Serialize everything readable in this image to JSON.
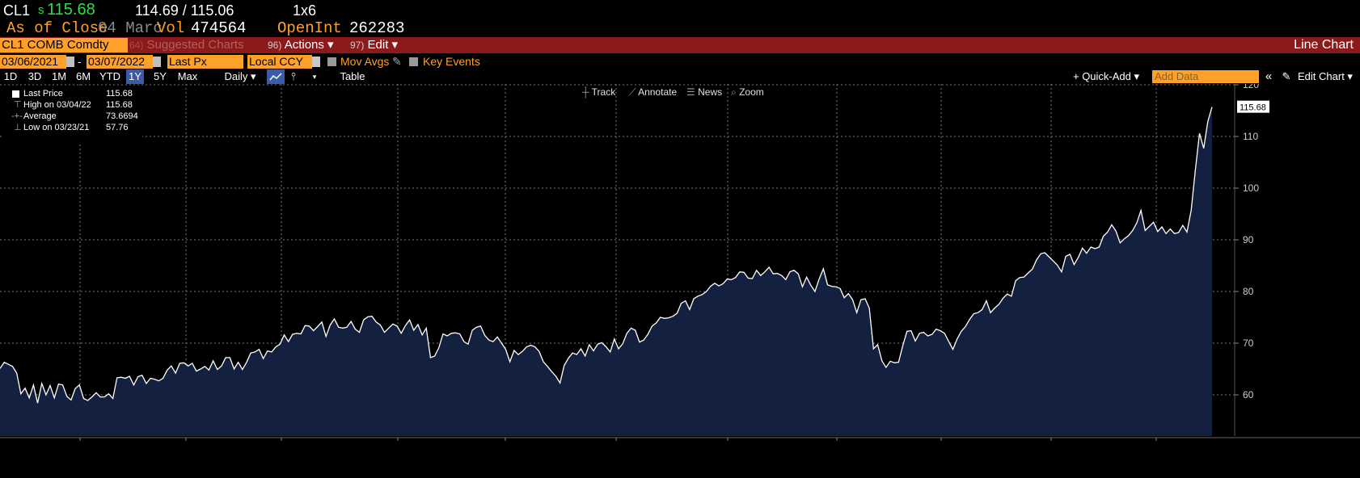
{
  "quote": {
    "ticker": "CL1",
    "price_prefix": "s",
    "price": "115.68",
    "bid_ask": "114.69 / 115.06",
    "size": "1x6",
    "as_of_label": "As of Close",
    "as_of_date": "04 Marc",
    "vol_label": "Vol",
    "vol": "474564",
    "openint_label": "OpenInt",
    "openint": "262283"
  },
  "header": {
    "security": "CL1 COMB Comdty",
    "suggested_charts": "Suggested Charts",
    "actions_num": "96)",
    "actions_label": "Actions ▾",
    "edit_num": "97)",
    "edit_label": "Edit ▾",
    "title": "Line Chart"
  },
  "params": {
    "start_date": "03/06/2021",
    "end_date": "03/07/2022",
    "field": "Last Px",
    "currency": "Local CCY",
    "mov_avgs": "Mov Avgs",
    "key_events": "Key Events"
  },
  "ranges": [
    "1D",
    "3D",
    "1M",
    "6M",
    "YTD",
    "1Y",
    "5Y",
    "Max"
  ],
  "active_range": "1Y",
  "toolbar": {
    "period": "Daily ▾",
    "table": "Table",
    "quick_add": "+ Quick-Add ▾",
    "add_data_placeholder": "Add Data",
    "collapse": "«",
    "edit_chart": "Edit Chart ▾",
    "track": "Track",
    "annotate": "Annotate",
    "news": "News",
    "zoom": "Zoom"
  },
  "legend": [
    {
      "label": "Last Price",
      "value": "115.68"
    },
    {
      "label": "High on 03/04/22",
      "value": "115.68"
    },
    {
      "label": "Average",
      "value": "73.6694"
    },
    {
      "label": "Low on 03/23/21",
      "value": "57.76"
    }
  ],
  "colors": {
    "orange": "#ffa028",
    "green_price": "#2ddc4a",
    "red_bar": "#8c1a1a",
    "area_fill": "#13203f",
    "line": "#ffffff"
  },
  "chart_data": {
    "type": "area",
    "ylim": [
      53,
      121
    ],
    "yticks": [
      60,
      70,
      80,
      90,
      100,
      110,
      120
    ],
    "grid": true,
    "last_value_label": "115.68",
    "x_range": [
      "2021-03-06",
      "2022-03-07"
    ],
    "series": [
      {
        "values": [
          65.1,
          66.3,
          65.9,
          65.5,
          64.2,
          60.2,
          61.3,
          59.4,
          61.9,
          58.4,
          62.2,
          60.0,
          61.8,
          59.4,
          62.1,
          61.9,
          59.7,
          59.0,
          61.2,
          61.9,
          59.3,
          58.9,
          59.6,
          60.4,
          59.6,
          59.6,
          60.2,
          59.3,
          63.3,
          63.4,
          63.2,
          63.6,
          61.9,
          63.5,
          63.8,
          62.2,
          63.2,
          63.0,
          62.7,
          63.2,
          64.8,
          65.6,
          64.2,
          66.1,
          66.2,
          65.6,
          66.1,
          64.6,
          65.0,
          65.5,
          64.8,
          66.6,
          64.9,
          65.6,
          67.2,
          67.2,
          65.0,
          66.3,
          64.9,
          66.3,
          68.1,
          68.3,
          68.8,
          67.0,
          68.5,
          68.3,
          69.3,
          69.8,
          71.6,
          70.3,
          71.7,
          71.9,
          71.8,
          73.4,
          73.3,
          72.4,
          73.2,
          74.1,
          71.3,
          73.5,
          74.7,
          73.1,
          72.9,
          73.1,
          74.2,
          72.7,
          72.1,
          74.5,
          75.1,
          75.2,
          74.1,
          73.5,
          72.1,
          72.9,
          73.7,
          73.3,
          71.9,
          73.4,
          74.5,
          72.5,
          73.6,
          71.6,
          72.9,
          67.2,
          67.5,
          69.1,
          71.8,
          71.4,
          71.9,
          72.0,
          71.8,
          70.3,
          69.8,
          72.5,
          73.1,
          73.3,
          71.5,
          70.6,
          70.3,
          71.2,
          70.0,
          68.8,
          66.4,
          68.6,
          67.8,
          68.4,
          69.3,
          69.6,
          69.3,
          68.4,
          66.4,
          65.5,
          64.5,
          63.6,
          62.3,
          65.7,
          67.1,
          68.1,
          67.8,
          68.9,
          67.5,
          69.7,
          68.5,
          69.8,
          70.1,
          69.3,
          68.3,
          70.8,
          68.9,
          69.9,
          71.9,
          72.9,
          72.5,
          70.2,
          70.6,
          71.7,
          73.3,
          73.9,
          75.0,
          74.8,
          74.9,
          75.2,
          75.8,
          77.7,
          78.2,
          76.5,
          78.6,
          79.1,
          79.4,
          80.0,
          81.0,
          81.6,
          81.1,
          81.5,
          82.4,
          82.3,
          82.7,
          83.8,
          83.7,
          82.6,
          82.5,
          84.1,
          83.1,
          83.8,
          84.7,
          83.4,
          83.5,
          83.1,
          82.3,
          83.8,
          84.1,
          83.4,
          80.9,
          82.8,
          81.2,
          80.0,
          82.4,
          84.4,
          81.3,
          81.0,
          80.9,
          80.6,
          78.8,
          79.6,
          78.4,
          75.9,
          78.4,
          78.6,
          76.8,
          68.9,
          69.7,
          66.6,
          65.3,
          66.5,
          66.2,
          66.3,
          69.5,
          72.3,
          72.4,
          70.4,
          71.9,
          72.1,
          71.4,
          71.7,
          72.7,
          72.4,
          71.9,
          70.3,
          68.8,
          70.8,
          72.3,
          73.2,
          74.6,
          75.7,
          75.9,
          76.5,
          78.2,
          75.9,
          76.8,
          77.5,
          78.7,
          79.5,
          79.1,
          82.1,
          82.7,
          82.8,
          83.6,
          84.3,
          86.1,
          87.3,
          87.5,
          86.7,
          85.9,
          85.1,
          83.8,
          86.8,
          87.2,
          85.2,
          86.6,
          88.4,
          87.4,
          88.6,
          88.3,
          88.6,
          90.7,
          91.5,
          92.9,
          91.7,
          89.4,
          90.2,
          90.8,
          91.8,
          93.3,
          95.7,
          91.8,
          92.6,
          93.4,
          91.6,
          92.5,
          91.2,
          92.1,
          91.2,
          91.4,
          92.8,
          91.5,
          95.7,
          103.4,
          110.6,
          107.7,
          112.9,
          115.7
        ]
      }
    ]
  }
}
